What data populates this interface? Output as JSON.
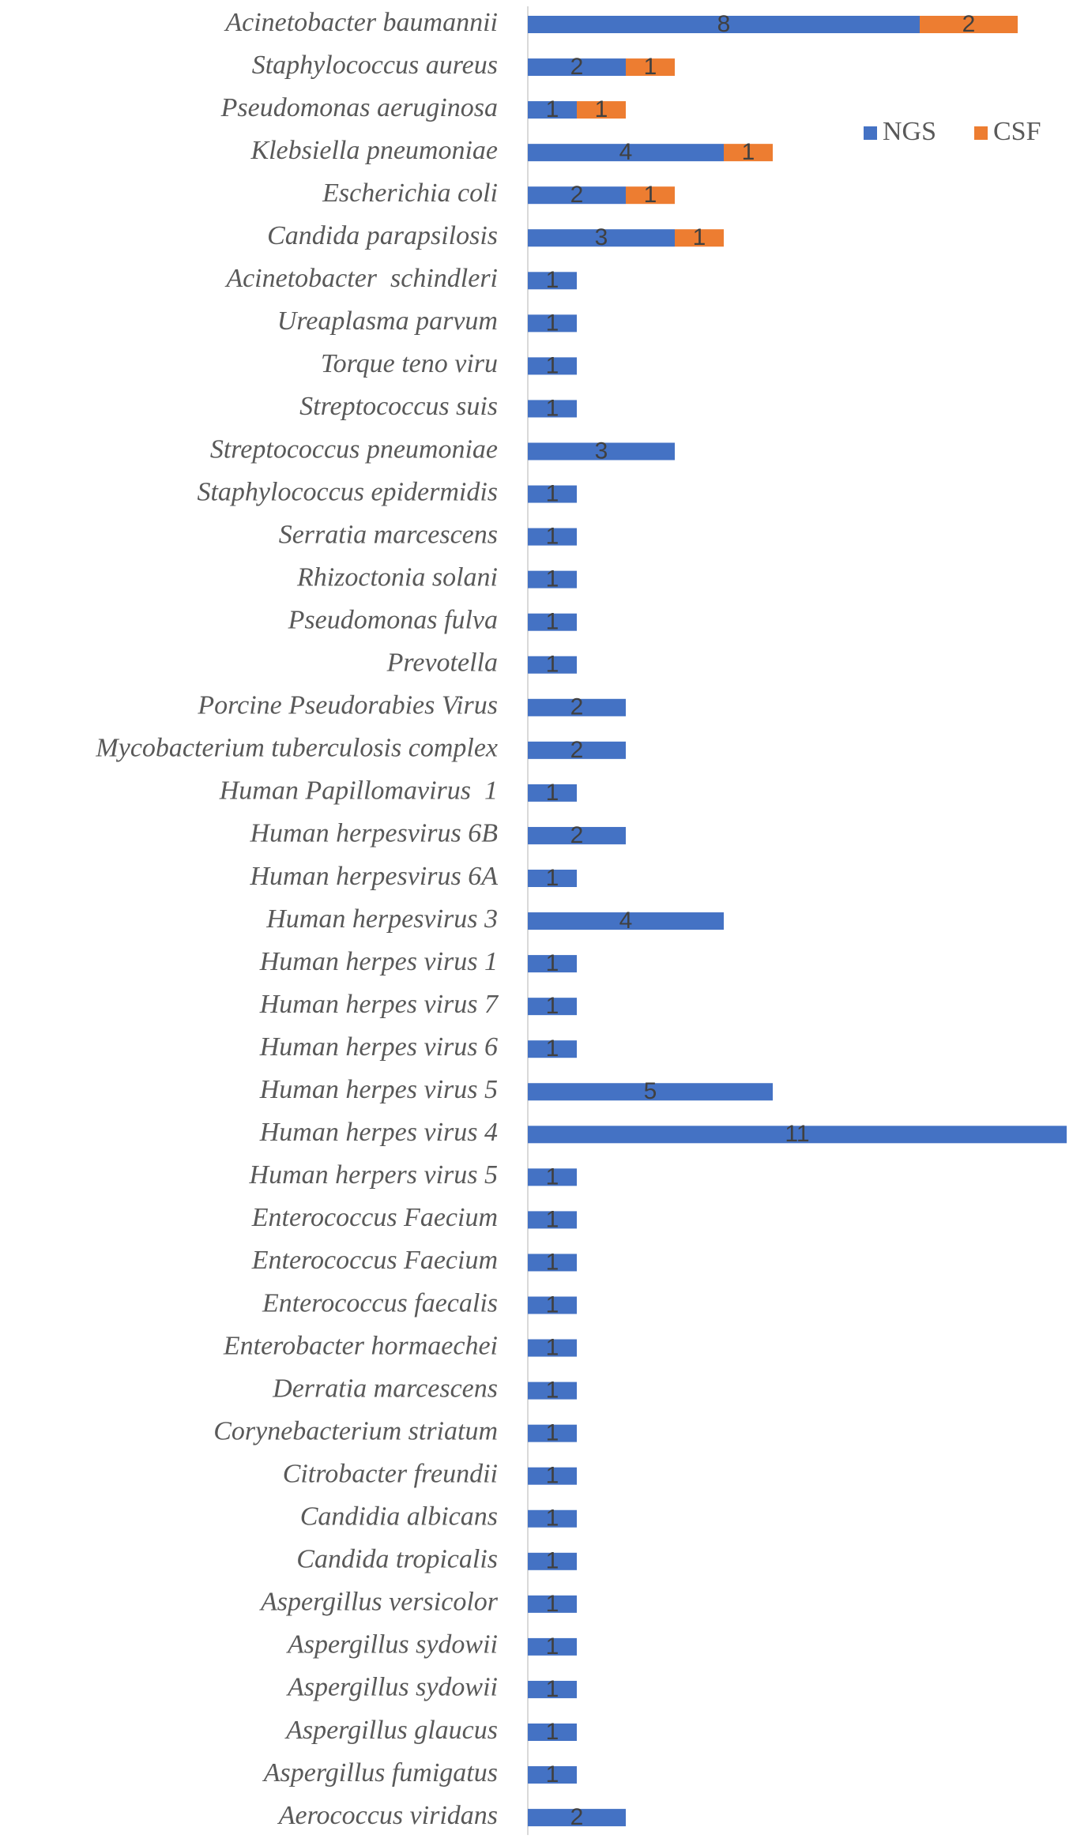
{
  "chart_data": {
    "type": "bar",
    "orientation": "horizontal",
    "stacked": true,
    "categories": [
      "Acinetobacter baumannii",
      "Staphylococcus aureus",
      "Pseudomonas aeruginosa",
      "Klebsiella pneumoniae",
      "Escherichia coli",
      "Candida parapsilosis",
      "Acinetobacter  schindleri",
      "Ureaplasma parvum",
      "Torque teno viru",
      "Streptococcus suis",
      "Streptococcus pneumoniae",
      "Staphylococcus epidermidis",
      "Serratia marcescens",
      "Rhizoctonia solani",
      "Pseudomonas fulva",
      "Prevotella",
      "Porcine Pseudorabies Virus",
      "Mycobacterium tuberculosis complex",
      "Human Papillomavirus  1",
      "Human herpesvirus 6B",
      "Human herpesvirus 6A",
      "Human herpesvirus 3",
      "Human herpes virus 1",
      "Human herpes virus 7",
      "Human herpes virus 6",
      "Human herpes virus 5",
      "Human herpes virus 4",
      "Human herpers virus 5",
      "Enterococcus Faecium",
      "Enterococcus Faecium",
      "Enterococcus faecalis",
      "Enterobacter hormaechei",
      "Derratia marcescens",
      "Corynebacterium striatum",
      "Citrobacter freundii",
      "Candidia albicans",
      "Candida tropicalis",
      "Aspergillus versicolor",
      "Aspergillus sydowii",
      "Aspergillus sydowii",
      "Aspergillus glaucus",
      "Aspergillus fumigatus",
      "Aerococcus viridans"
    ],
    "series": [
      {
        "name": "NGS",
        "color": "#4472C4",
        "values": [
          8,
          2,
          1,
          4,
          2,
          3,
          1,
          1,
          1,
          1,
          3,
          1,
          1,
          1,
          1,
          1,
          2,
          2,
          1,
          2,
          1,
          4,
          1,
          1,
          1,
          5,
          11,
          1,
          1,
          1,
          1,
          1,
          1,
          1,
          1,
          1,
          1,
          1,
          1,
          1,
          1,
          1,
          2
        ]
      },
      {
        "name": "CSF",
        "color": "#ED7D31",
        "values": [
          2,
          1,
          1,
          1,
          1,
          1,
          null,
          null,
          null,
          null,
          null,
          null,
          null,
          null,
          null,
          null,
          null,
          null,
          null,
          null,
          null,
          null,
          null,
          null,
          null,
          null,
          null,
          null,
          null,
          null,
          null,
          null,
          null,
          null,
          null,
          null,
          null,
          null,
          null,
          null,
          null,
          null,
          null
        ]
      }
    ],
    "xlim": [
      0,
      11
    ],
    "legend_position": "top-right",
    "data_labels": true,
    "grid": false
  }
}
